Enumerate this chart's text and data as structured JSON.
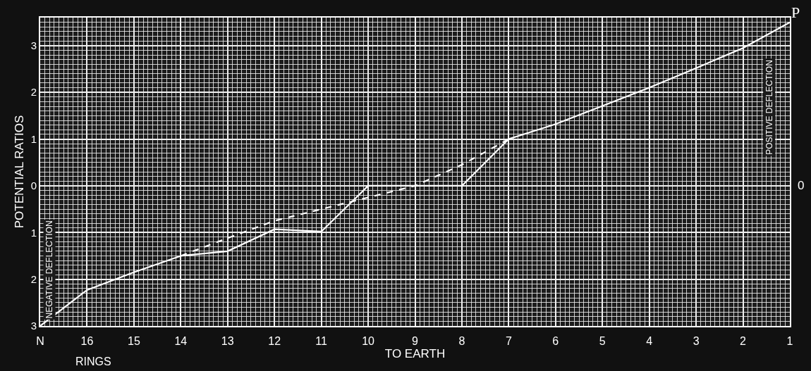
{
  "chart_data": {
    "type": "line",
    "ylabel": "POTENTIAL RATIOS",
    "xlabel": "TO EARTH",
    "annotations": [
      "RINGS",
      "NEGATIVE DEFLECTION",
      "POSITIVE DEFLECTION",
      "0",
      {
        "text": "P",
        "x": 1,
        "y": 3.5
      }
    ],
    "x": [
      17,
      16,
      15,
      14,
      13,
      12,
      11,
      10,
      9,
      8,
      7,
      6,
      5,
      4,
      3,
      2,
      1
    ],
    "series": [
      {
        "color": "#ffffff",
        "line_style": "solid",
        "values": [
          -3,
          -2.23,
          -1.85,
          -1.5,
          -1.4,
          -0.93,
          -0.98,
          0,
          0,
          0,
          1,
          1.32,
          1.71,
          2.1,
          2.52,
          2.95,
          3.5
        ]
      },
      {
        "color": "#ffffff",
        "line_style": "dashed",
        "x": [
          14,
          13,
          12,
          11,
          10,
          9,
          8,
          7
        ],
        "values": [
          -1.5,
          -1.12,
          -0.75,
          -0.5,
          -0.25,
          0,
          0.45,
          1
        ]
      }
    ],
    "xlim": [
      17,
      1
    ],
    "xticks": [
      {
        "value": 17,
        "label": "N"
      },
      16,
      15,
      14,
      13,
      12,
      11,
      10,
      9,
      8,
      7,
      6,
      5,
      4,
      3,
      2,
      1
    ],
    "ylim": [
      -3,
      3.6
    ],
    "yticks": [
      3,
      2,
      1,
      0,
      {
        "value": -1,
        "label": "1"
      },
      {
        "value": -2,
        "label": "2"
      },
      {
        "value": -3,
        "label": "3"
      }
    ],
    "grid": true,
    "marker": "none"
  }
}
